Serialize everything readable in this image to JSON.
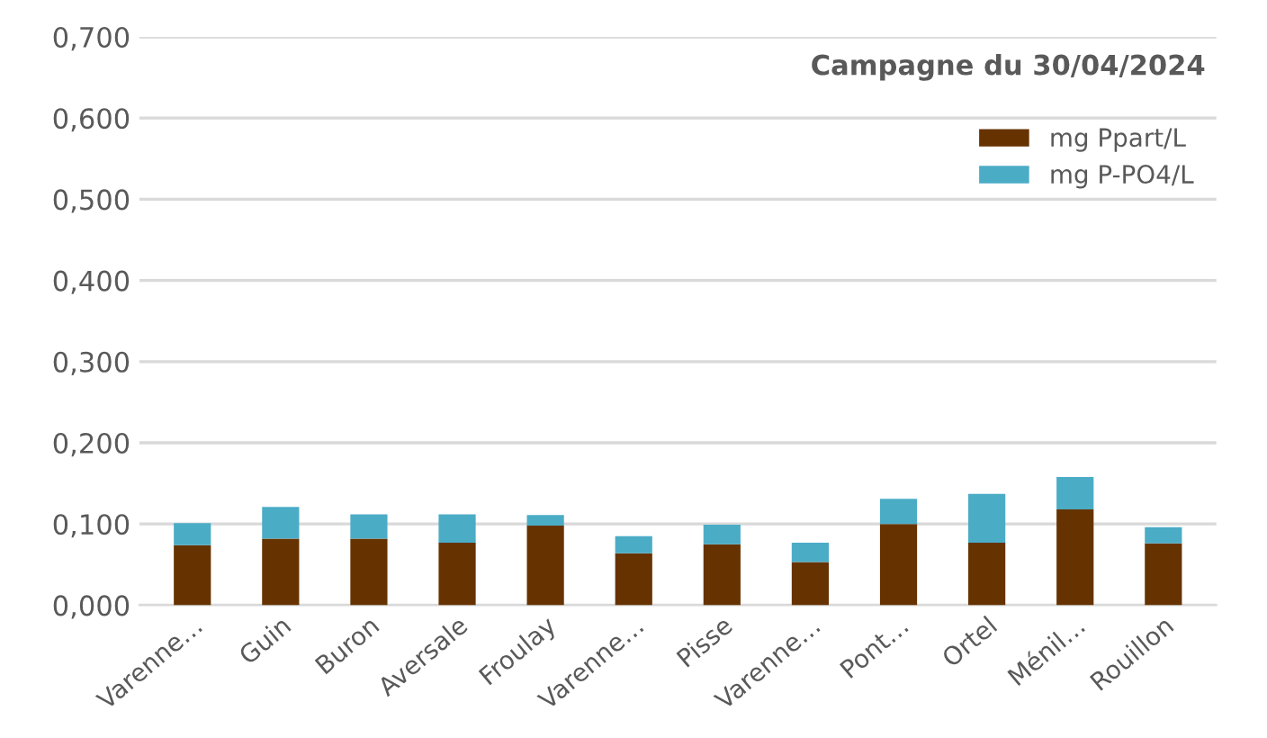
{
  "chart_data": {
    "type": "bar",
    "title": "Campagne du 30/04/2024",
    "stacked": true,
    "categories": [
      "Varenne…",
      "Guin",
      "Buron",
      "Aversale",
      "Froulay",
      "Varenne…",
      "Pisse",
      "Varenne…",
      "Pont…",
      "Ortel",
      "Ménil…",
      "Rouillon"
    ],
    "series": [
      {
        "name": "mg Ppart/L",
        "color": "#663300",
        "values": [
          0.074,
          0.082,
          0.082,
          0.077,
          0.098,
          0.064,
          0.075,
          0.053,
          0.1,
          0.077,
          0.118,
          0.076
        ]
      },
      {
        "name": "mg P-PO4/L",
        "color": "#4bacc6",
        "values": [
          0.027,
          0.039,
          0.03,
          0.035,
          0.013,
          0.021,
          0.024,
          0.024,
          0.031,
          0.06,
          0.04,
          0.02
        ]
      }
    ],
    "ylim": [
      0,
      0.7
    ],
    "yticks": [
      {
        "value": 0,
        "label": "0,000"
      },
      {
        "value": 0.1,
        "label": "0,100"
      },
      {
        "value": 0.2,
        "label": "0,200"
      },
      {
        "value": 0.3,
        "label": "0,300"
      },
      {
        "value": 0.4,
        "label": "0,400"
      },
      {
        "value": 0.5,
        "label": "0,500"
      },
      {
        "value": 0.6,
        "label": "0,600"
      },
      {
        "value": 0.7,
        "label": "0,700"
      }
    ],
    "grid": "y",
    "legend": "top right"
  }
}
